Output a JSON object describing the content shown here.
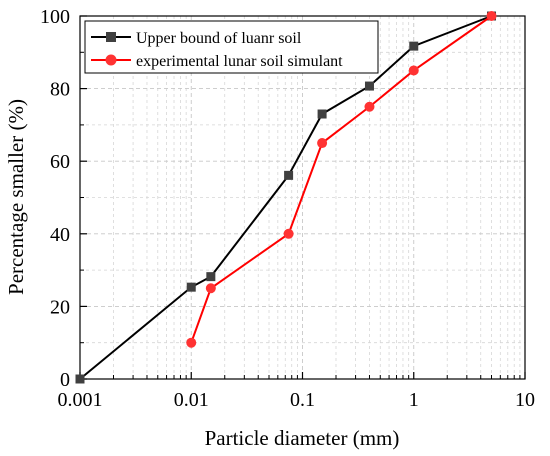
{
  "chart_data": {
    "type": "line",
    "title": "",
    "xlabel": "Particle diameter (mm)",
    "ylabel": "Percentage smaller (%)",
    "xscale": "log",
    "xlim": [
      0.001,
      10
    ],
    "ylim": [
      0,
      100
    ],
    "xticks": [
      "0.001",
      "0.01",
      "0.1",
      "1",
      "10"
    ],
    "yticks": [
      "0",
      "20",
      "40",
      "60",
      "80",
      "100"
    ],
    "grid": "on (dashed, major and minor)",
    "legend_position": "top-left",
    "series": [
      {
        "name": "Upper bound of luanr soil",
        "color": "#000000",
        "marker_color": "#404040",
        "marker": "square",
        "x": [
          0.001,
          0.01,
          0.015,
          0.075,
          0.15,
          0.4,
          1,
          5
        ],
        "y": [
          0,
          25.3,
          28.2,
          56.1,
          73,
          80.7,
          91.7,
          100
        ]
      },
      {
        "name": "experimental lunar soil simulant",
        "color": "#ff0000",
        "marker_color": "#ff3333",
        "marker": "circle",
        "x": [
          0.01,
          0.015,
          0.075,
          0.15,
          0.4,
          1,
          5
        ],
        "y": [
          10,
          25,
          40,
          65,
          75,
          85,
          100
        ]
      }
    ]
  }
}
